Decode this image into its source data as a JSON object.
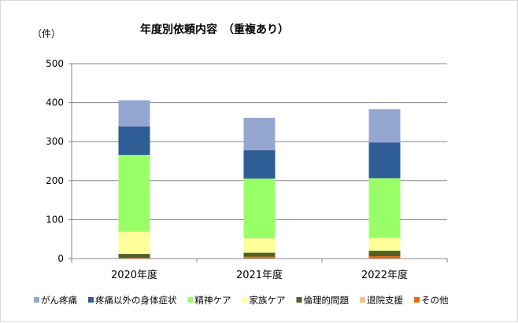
{
  "chart_data": {
    "type": "bar",
    "stacked": true,
    "title": "年度別依頼内容　（重複あり）",
    "unit_label": "（件）",
    "categories": [
      "2020年度",
      "2021年度",
      "2022年度"
    ],
    "ylim": [
      0,
      500
    ],
    "yticks": [
      "0",
      "100",
      "200",
      "300",
      "400",
      "500"
    ],
    "grid": true,
    "legend_position": "bottom",
    "series": [
      {
        "name": "その他",
        "color": "#e46c0a",
        "values": [
          2,
          5,
          6
        ]
      },
      {
        "name": "退院支援",
        "color": "#fac090",
        "values": [
          0,
          0,
          0
        ]
      },
      {
        "name": "倫理的問題",
        "color": "#4f6228",
        "values": [
          10,
          10,
          14
        ]
      },
      {
        "name": "家族ケア",
        "color": "#ffff99",
        "values": [
          57,
          37,
          33
        ]
      },
      {
        "name": "精神ケア",
        "color": "#99ff66",
        "values": [
          197,
          153,
          153
        ]
      },
      {
        "name": "疼痛以外の身体症状",
        "color": "#2f5d96",
        "values": [
          73,
          73,
          92
        ]
      },
      {
        "name": "がん疼痛",
        "color": "#95a7d1",
        "values": [
          67,
          83,
          85
        ]
      }
    ],
    "legend_order": [
      "がん疼痛",
      "疼痛以外の身体症状",
      "精神ケア",
      "家族ケア",
      "倫理的問題",
      "退院支援",
      "その他"
    ]
  }
}
